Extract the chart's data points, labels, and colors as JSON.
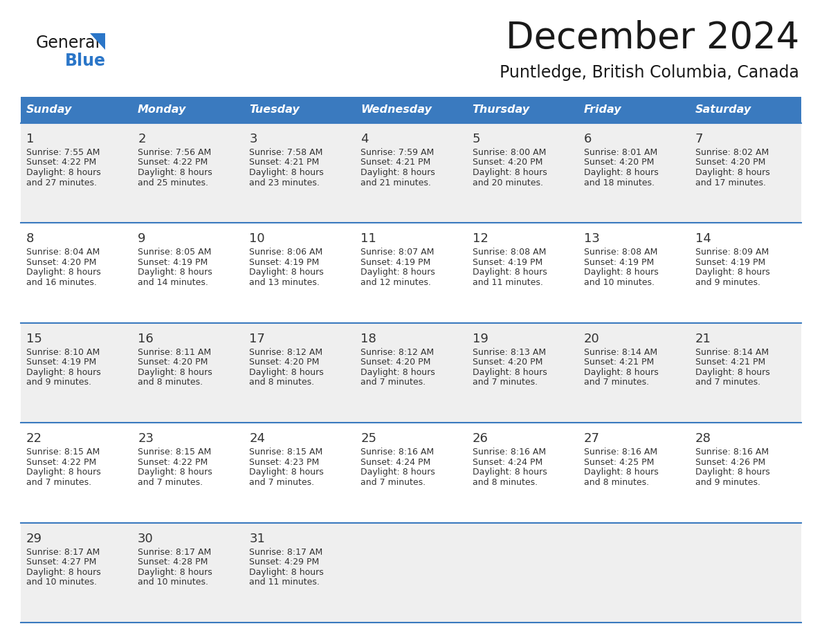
{
  "title": "December 2024",
  "subtitle": "Puntledge, British Columbia, Canada",
  "header_color": "#3a7abf",
  "header_text_color": "#ffffff",
  "row_bg_odd": "#efefef",
  "row_bg_even": "#ffffff",
  "border_color": "#3a7abf",
  "day_number_color": "#333333",
  "cell_text_color": "#333333",
  "days_of_week": [
    "Sunday",
    "Monday",
    "Tuesday",
    "Wednesday",
    "Thursday",
    "Friday",
    "Saturday"
  ],
  "weeks": [
    [
      {
        "day": 1,
        "sunrise": "7:55 AM",
        "sunset": "4:22 PM",
        "daylight": "8 hours and 27 minutes."
      },
      {
        "day": 2,
        "sunrise": "7:56 AM",
        "sunset": "4:22 PM",
        "daylight": "8 hours and 25 minutes."
      },
      {
        "day": 3,
        "sunrise": "7:58 AM",
        "sunset": "4:21 PM",
        "daylight": "8 hours and 23 minutes."
      },
      {
        "day": 4,
        "sunrise": "7:59 AM",
        "sunset": "4:21 PM",
        "daylight": "8 hours and 21 minutes."
      },
      {
        "day": 5,
        "sunrise": "8:00 AM",
        "sunset": "4:20 PM",
        "daylight": "8 hours and 20 minutes."
      },
      {
        "day": 6,
        "sunrise": "8:01 AM",
        "sunset": "4:20 PM",
        "daylight": "8 hours and 18 minutes."
      },
      {
        "day": 7,
        "sunrise": "8:02 AM",
        "sunset": "4:20 PM",
        "daylight": "8 hours and 17 minutes."
      }
    ],
    [
      {
        "day": 8,
        "sunrise": "8:04 AM",
        "sunset": "4:20 PM",
        "daylight": "8 hours and 16 minutes."
      },
      {
        "day": 9,
        "sunrise": "8:05 AM",
        "sunset": "4:19 PM",
        "daylight": "8 hours and 14 minutes."
      },
      {
        "day": 10,
        "sunrise": "8:06 AM",
        "sunset": "4:19 PM",
        "daylight": "8 hours and 13 minutes."
      },
      {
        "day": 11,
        "sunrise": "8:07 AM",
        "sunset": "4:19 PM",
        "daylight": "8 hours and 12 minutes."
      },
      {
        "day": 12,
        "sunrise": "8:08 AM",
        "sunset": "4:19 PM",
        "daylight": "8 hours and 11 minutes."
      },
      {
        "day": 13,
        "sunrise": "8:08 AM",
        "sunset": "4:19 PM",
        "daylight": "8 hours and 10 minutes."
      },
      {
        "day": 14,
        "sunrise": "8:09 AM",
        "sunset": "4:19 PM",
        "daylight": "8 hours and 9 minutes."
      }
    ],
    [
      {
        "day": 15,
        "sunrise": "8:10 AM",
        "sunset": "4:19 PM",
        "daylight": "8 hours and 9 minutes."
      },
      {
        "day": 16,
        "sunrise": "8:11 AM",
        "sunset": "4:20 PM",
        "daylight": "8 hours and 8 minutes."
      },
      {
        "day": 17,
        "sunrise": "8:12 AM",
        "sunset": "4:20 PM",
        "daylight": "8 hours and 8 minutes."
      },
      {
        "day": 18,
        "sunrise": "8:12 AM",
        "sunset": "4:20 PM",
        "daylight": "8 hours and 7 minutes."
      },
      {
        "day": 19,
        "sunrise": "8:13 AM",
        "sunset": "4:20 PM",
        "daylight": "8 hours and 7 minutes."
      },
      {
        "day": 20,
        "sunrise": "8:14 AM",
        "sunset": "4:21 PM",
        "daylight": "8 hours and 7 minutes."
      },
      {
        "day": 21,
        "sunrise": "8:14 AM",
        "sunset": "4:21 PM",
        "daylight": "8 hours and 7 minutes."
      }
    ],
    [
      {
        "day": 22,
        "sunrise": "8:15 AM",
        "sunset": "4:22 PM",
        "daylight": "8 hours and 7 minutes."
      },
      {
        "day": 23,
        "sunrise": "8:15 AM",
        "sunset": "4:22 PM",
        "daylight": "8 hours and 7 minutes."
      },
      {
        "day": 24,
        "sunrise": "8:15 AM",
        "sunset": "4:23 PM",
        "daylight": "8 hours and 7 minutes."
      },
      {
        "day": 25,
        "sunrise": "8:16 AM",
        "sunset": "4:24 PM",
        "daylight": "8 hours and 7 minutes."
      },
      {
        "day": 26,
        "sunrise": "8:16 AM",
        "sunset": "4:24 PM",
        "daylight": "8 hours and 8 minutes."
      },
      {
        "day": 27,
        "sunrise": "8:16 AM",
        "sunset": "4:25 PM",
        "daylight": "8 hours and 8 minutes."
      },
      {
        "day": 28,
        "sunrise": "8:16 AM",
        "sunset": "4:26 PM",
        "daylight": "8 hours and 9 minutes."
      }
    ],
    [
      {
        "day": 29,
        "sunrise": "8:17 AM",
        "sunset": "4:27 PM",
        "daylight": "8 hours and 10 minutes."
      },
      {
        "day": 30,
        "sunrise": "8:17 AM",
        "sunset": "4:28 PM",
        "daylight": "8 hours and 10 minutes."
      },
      {
        "day": 31,
        "sunrise": "8:17 AM",
        "sunset": "4:29 PM",
        "daylight": "8 hours and 11 minutes."
      },
      null,
      null,
      null,
      null
    ]
  ],
  "logo_text_general": "General",
  "logo_text_blue": "Blue",
  "logo_triangle_color": "#2b76c8",
  "logo_general_color": "#1a1a1a",
  "logo_blue_color": "#2b76c8",
  "title_fontsize": 38,
  "subtitle_fontsize": 17,
  "header_fontsize": 11.5,
  "day_num_fontsize": 13,
  "cell_fontsize": 9.0
}
